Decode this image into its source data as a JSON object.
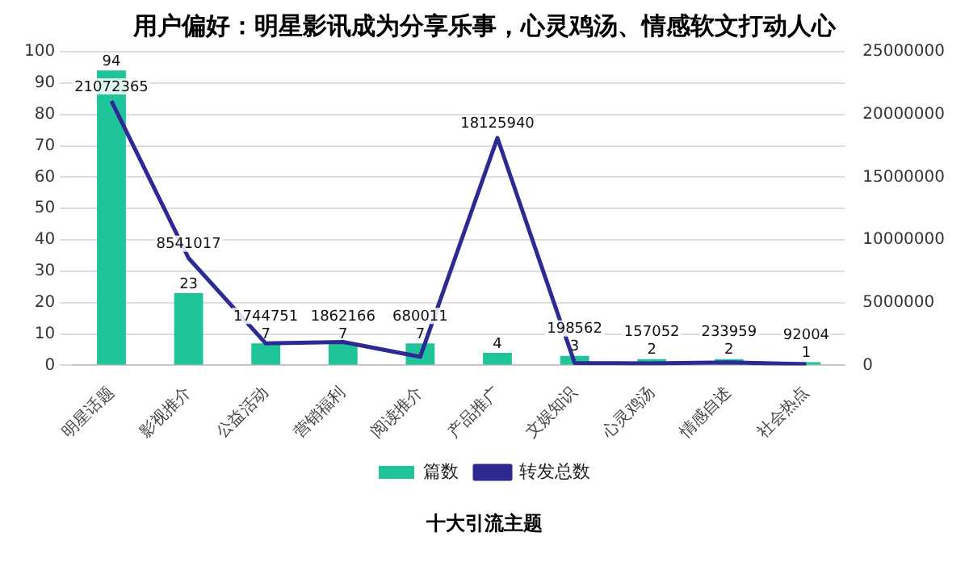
{
  "chart_data": {
    "type": "bar",
    "title": "用户偏好：明星影讯成为分享乐事，心灵鸡汤、情感软文打动人心",
    "categories": [
      "明星话题",
      "影视推介",
      "公益活动",
      "营销福利",
      "阅读推介",
      "产品推广",
      "文娱知识",
      "心灵鸡汤",
      "情感自述",
      "社会热点"
    ],
    "series": [
      {
        "name": "篇数",
        "color": "#1fc49a",
        "values": [
          94,
          23,
          7,
          7,
          7,
          4,
          3,
          2,
          2,
          1
        ]
      },
      {
        "name": "转发总数",
        "type": "line",
        "axis": "y2",
        "color": "#2e2a94",
        "values": [
          21072365,
          8541017,
          1744751,
          1862166,
          680011,
          18125940,
          198562,
          157052,
          233959,
          92004
        ]
      }
    ],
    "ylim": [
      0,
      100
    ],
    "yticks": [
      0,
      10,
      20,
      30,
      40,
      50,
      60,
      70,
      80,
      90,
      100
    ],
    "y2lim": [
      0,
      25000000
    ],
    "y2ticks": [
      0,
      5000000,
      10000000,
      15000000,
      20000000,
      25000000
    ],
    "grid": "y",
    "legend": "bottom",
    "data_labels": true,
    "marker": "none",
    "annotations": [
      "十大引流主题"
    ]
  }
}
